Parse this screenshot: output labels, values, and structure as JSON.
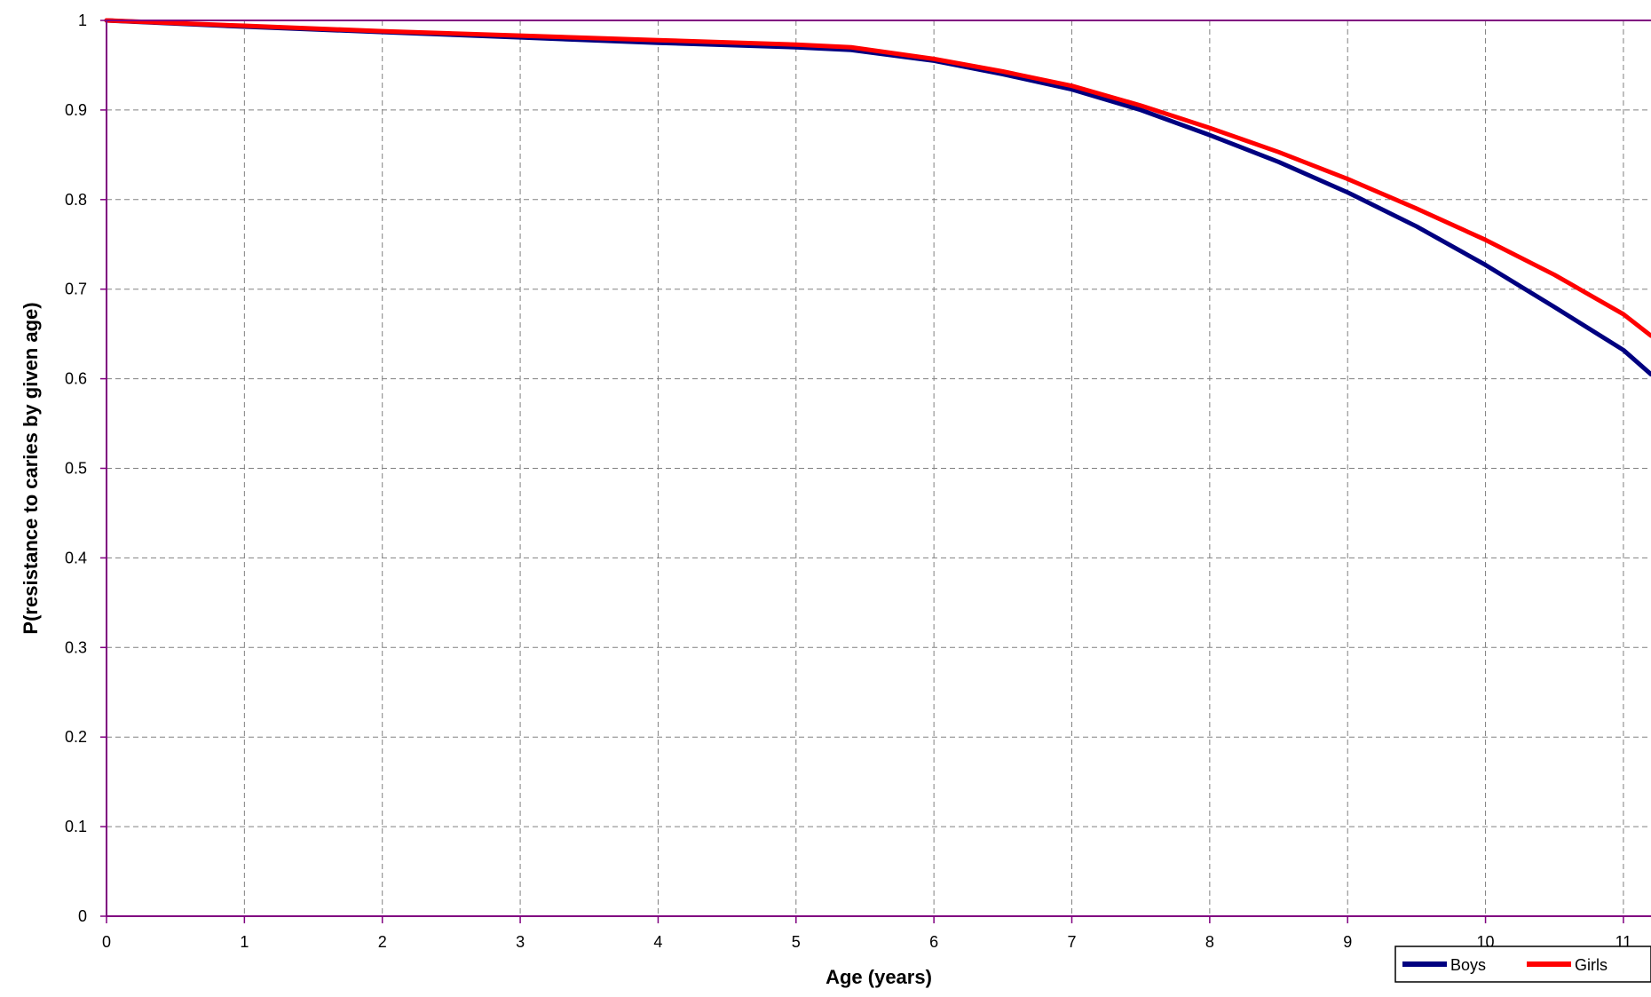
{
  "chart_data": {
    "type": "line",
    "title": "",
    "xlabel": "Age (years)",
    "ylabel": "P(resistance to caries by given age)",
    "xlim": [
      0,
      11.2
    ],
    "ylim": [
      0,
      1
    ],
    "x_ticks": [
      "0",
      "1",
      "2",
      "3",
      "4",
      "5",
      "6",
      "7",
      "8",
      "9",
      "10",
      "11"
    ],
    "y_ticks": [
      "0",
      "0.1",
      "0.2",
      "0.3",
      "0.4",
      "0.5",
      "0.6",
      "0.7",
      "0.8",
      "0.9",
      "1"
    ],
    "grid": true,
    "legend_position": "bottom-right",
    "series": [
      {
        "name": "Boys",
        "color": "#000080",
        "x": [
          0,
          1,
          2,
          3,
          4,
          5,
          5.4,
          6,
          6.5,
          7,
          7.5,
          8,
          8.5,
          9,
          9.5,
          10,
          10.5,
          11,
          11.2
        ],
        "y": [
          1.0,
          0.993,
          0.987,
          0.981,
          0.975,
          0.97,
          0.967,
          0.955,
          0.94,
          0.923,
          0.9,
          0.872,
          0.842,
          0.808,
          0.77,
          0.727,
          0.68,
          0.632,
          0.605
        ]
      },
      {
        "name": "Girls",
        "color": "#ff0000",
        "x": [
          0,
          1,
          2,
          3,
          4,
          5,
          5.4,
          6,
          6.5,
          7,
          7.5,
          8,
          8.5,
          9,
          9.5,
          10,
          10.5,
          11,
          11.2
        ],
        "y": [
          1.0,
          0.994,
          0.988,
          0.983,
          0.978,
          0.973,
          0.97,
          0.957,
          0.943,
          0.927,
          0.905,
          0.88,
          0.853,
          0.823,
          0.79,
          0.755,
          0.716,
          0.672,
          0.648
        ]
      }
    ]
  }
}
